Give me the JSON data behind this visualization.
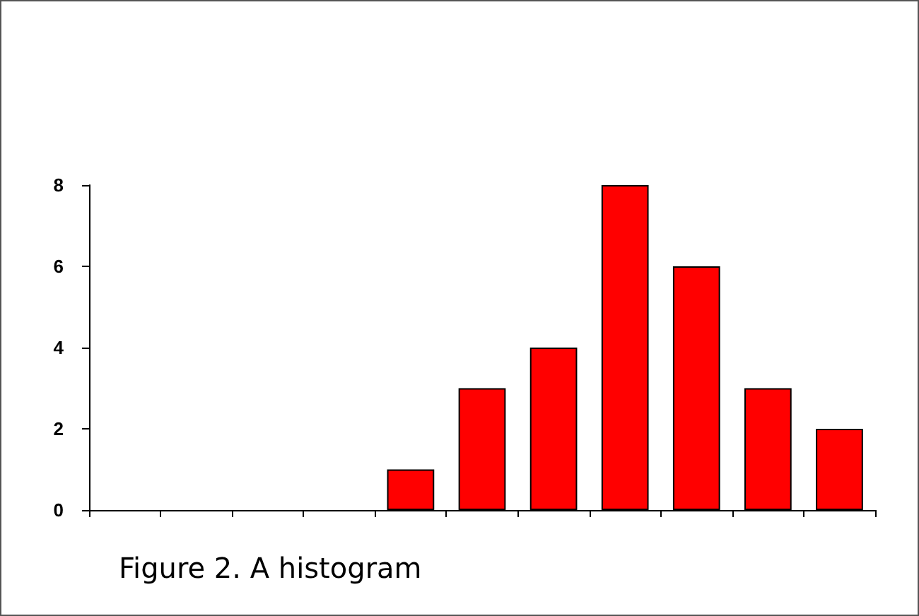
{
  "chart_data": {
    "type": "bar",
    "title": "Figure 2. A histogram",
    "categories": [
      null,
      null,
      null,
      null,
      null,
      null,
      null,
      null,
      null,
      null,
      null
    ],
    "values": [
      0,
      0,
      0,
      0,
      1,
      3,
      4,
      8,
      6,
      3,
      2
    ],
    "color": "#ff0000",
    "ylim": [
      0,
      8
    ],
    "yticks": [
      0,
      2,
      4,
      6,
      8
    ],
    "grid": false
  }
}
